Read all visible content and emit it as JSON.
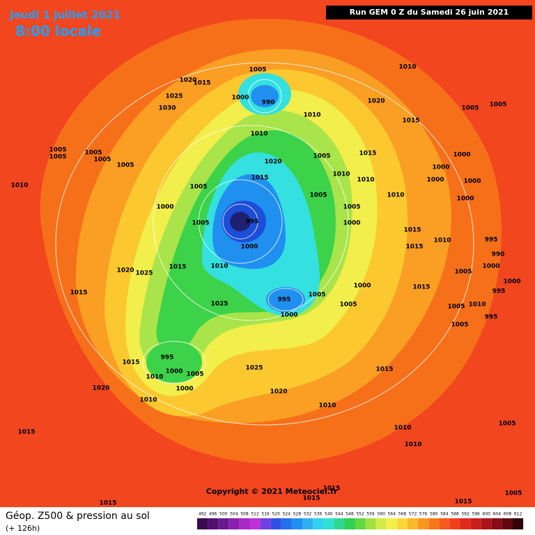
{
  "header": {
    "date": "Jeudi 1 juillet 2021",
    "time": "8:00 locale",
    "run": "Run GEM 0 Z du Samedi 26 juin 2021"
  },
  "copyright": "Copyright © 2021 Meteociel.fr",
  "footer": {
    "title": "Géop. Z500 & pression au sol",
    "lead": "(+ 126h)"
  },
  "legend": {
    "values": [
      492,
      496,
      500,
      504,
      508,
      512,
      516,
      520,
      524,
      528,
      532,
      536,
      540,
      544,
      548,
      552,
      556,
      560,
      564,
      568,
      572,
      576,
      580,
      584,
      588,
      592,
      596,
      600,
      604,
      608,
      612
    ],
    "colors": [
      "#3a0a50",
      "#50106e",
      "#6a1890",
      "#8a20b0",
      "#a828c8",
      "#c030d8",
      "#7040e0",
      "#3050e8",
      "#2070f0",
      "#2090f0",
      "#30b0f0",
      "#30d0f0",
      "#30e0d0",
      "#30d890",
      "#30d050",
      "#60d840",
      "#a0e040",
      "#d0ec44",
      "#f4f04a",
      "#f8d838",
      "#fab82c",
      "#f8981e",
      "#f6781a",
      "#f45a1a",
      "#f0401c",
      "#e02a1c",
      "#c81e1c",
      "#a8141a",
      "#880c16",
      "#600810",
      "#300408"
    ]
  },
  "isobars": [
    1005,
    1000,
    990,
    1020,
    1015,
    1025,
    1030,
    1010,
    1020,
    1010,
    1005,
    1005,
    1015,
    1010,
    1020,
    1005,
    1015,
    1010,
    1010,
    1015,
    1005,
    1000,
    1005,
    1010,
    1000,
    1000,
    1000,
    1000,
    1000,
    1005,
    1000,
    995,
    1005,
    1000,
    1015,
    1015,
    1010,
    995,
    990,
    1000,
    1005,
    1000,
    995,
    1010,
    1015,
    1020,
    1025,
    1015,
    1000,
    1015,
    995,
    1005,
    1025,
    1005,
    1005,
    1010,
    1005,
    995,
    1000,
    995,
    1015,
    1000,
    1005,
    1010,
    1025,
    1015,
    1000,
    1020,
    1010,
    1020,
    1010,
    1015,
    1010,
    1005,
    1010,
    1015,
    1015,
    1015,
    1015,
    1005,
    1010,
    1005,
    1005,
    1005,
    1005,
    1005
  ]
}
